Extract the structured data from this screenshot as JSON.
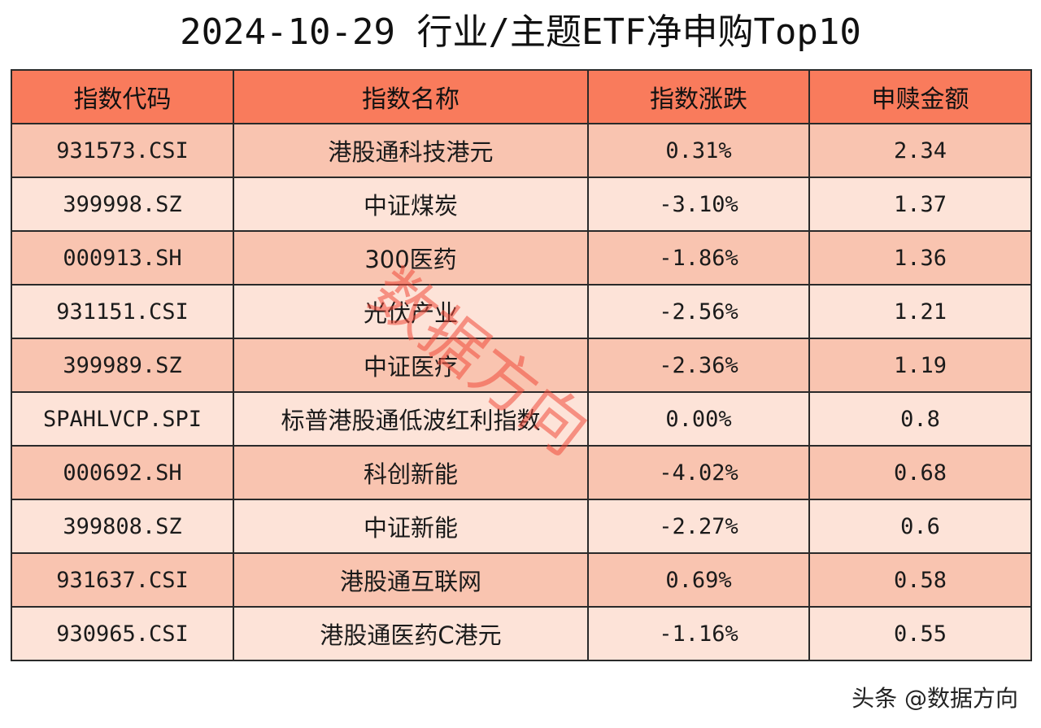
{
  "title": "2024-10-29 行业/主题ETF净申购Top10",
  "table": {
    "headers": [
      "指数代码",
      "指数名称",
      "指数涨跌",
      "申赎金额"
    ],
    "rows": [
      {
        "code": "931573.CSI",
        "name": "港股通科技港元",
        "change": "0.31%",
        "amount": "2.34"
      },
      {
        "code": "399998.SZ",
        "name": "中证煤炭",
        "change": "-3.10%",
        "amount": "1.37"
      },
      {
        "code": "000913.SH",
        "name": "300医药",
        "change": "-1.86%",
        "amount": "1.36"
      },
      {
        "code": "931151.CSI",
        "name": "光伏产业",
        "change": "-2.56%",
        "amount": "1.21"
      },
      {
        "code": "399989.SZ",
        "name": "中证医疗",
        "change": "-2.36%",
        "amount": "1.19"
      },
      {
        "code": "SPAHLVCP.SPI",
        "name": "标普港股通低波红利指数",
        "change": "0.00%",
        "amount": "0.8"
      },
      {
        "code": "000692.SH",
        "name": "科创新能",
        "change": "-4.02%",
        "amount": "0.68"
      },
      {
        "code": "399808.SZ",
        "name": "中证新能",
        "change": "-2.27%",
        "amount": "0.6"
      },
      {
        "code": "931637.CSI",
        "name": "港股通互联网",
        "change": "0.69%",
        "amount": "0.58"
      },
      {
        "code": "930965.CSI",
        "name": "港股通医药C港元",
        "change": "-1.16%",
        "amount": "0.55"
      }
    ]
  },
  "watermark": "数据方向",
  "footer": "头条 @数据方向",
  "colors": {
    "header_bg": "#f97b5c",
    "row_odd_bg": "#f9c4b0",
    "row_even_bg": "#fde3d8",
    "watermark": "#f04a3a"
  }
}
